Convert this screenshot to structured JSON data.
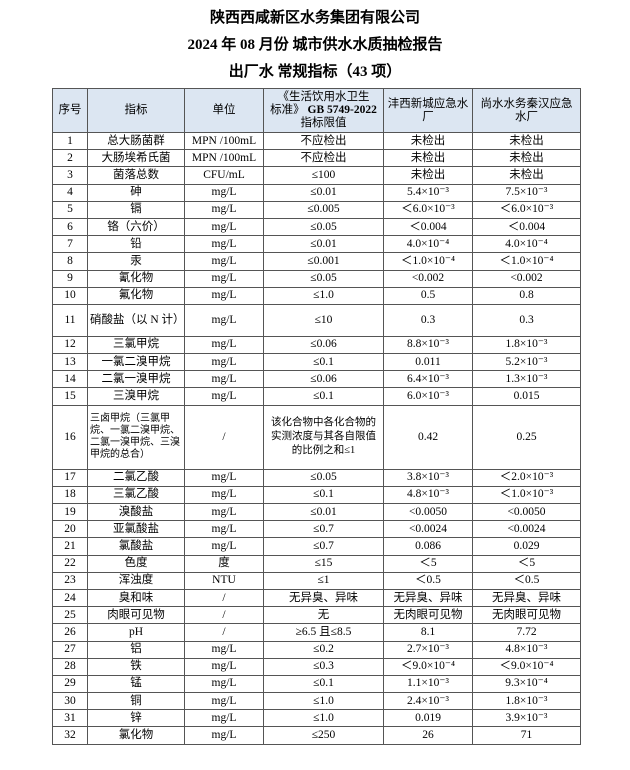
{
  "titles": {
    "company": "陕西西咸新区水务集团有限公司",
    "report": "2024 年 08 月份  城市供水水质抽检报告",
    "subtitle": "出厂水 常规指标（43 项）"
  },
  "header": {
    "no": "序号",
    "indicator": "指标",
    "unit": "单位",
    "limit_line1": "《生活饮用水卫生",
    "limit_line2a": "标准》",
    "limit_line2b": "GB 5749-2022",
    "limit_line3": "指标限值",
    "plant1": "沣西新城应急水厂",
    "plant2": "尚水水务秦汉应急水厂"
  },
  "colors": {
    "header_bg": "#dce6f2",
    "border": "#555555"
  },
  "rows": [
    {
      "no": "1",
      "name": "总大肠菌群",
      "unit": "MPN /100mL",
      "limit": "不应检出",
      "p1": "未检出",
      "p2": "未检出"
    },
    {
      "no": "2",
      "name": "大肠埃希氏菌",
      "unit": "MPN /100mL",
      "limit": "不应检出",
      "p1": "未检出",
      "p2": "未检出"
    },
    {
      "no": "3",
      "name": "菌落总数",
      "unit": "CFU/mL",
      "limit": "≤100",
      "p1": "未检出",
      "p2": "未检出"
    },
    {
      "no": "4",
      "name": "砷",
      "unit": "mg/L",
      "limit": "≤0.01",
      "p1": "5.4×10⁻³",
      "p2": "7.5×10⁻³"
    },
    {
      "no": "5",
      "name": "镉",
      "unit": "mg/L",
      "limit": "≤0.005",
      "p1": "＜6.0×10⁻³",
      "p2": "＜6.0×10⁻³"
    },
    {
      "no": "6",
      "name": "铬（六价）",
      "unit": "mg/L",
      "limit": "≤0.05",
      "p1": "＜0.004",
      "p2": "＜0.004"
    },
    {
      "no": "7",
      "name": "铅",
      "unit": "mg/L",
      "limit": "≤0.01",
      "p1": "4.0×10⁻⁴",
      "p2": "4.0×10⁻⁴"
    },
    {
      "no": "8",
      "name": "汞",
      "unit": "mg/L",
      "limit": "≤0.001",
      "p1": "＜1.0×10⁻⁴",
      "p2": "＜1.0×10⁻⁴"
    },
    {
      "no": "9",
      "name": "氰化物",
      "unit": "mg/L",
      "limit": "≤0.05",
      "p1": "<0.002",
      "p2": "<0.002"
    },
    {
      "no": "10",
      "name": "氟化物",
      "unit": "mg/L",
      "limit": "≤1.0",
      "p1": "0.5",
      "p2": "0.8"
    },
    {
      "no": "11",
      "name": "硝酸盐（以 N 计）",
      "unit": "mg/L",
      "limit": "≤10",
      "p1": "0.3",
      "p2": "0.3"
    },
    {
      "no": "12",
      "name": "三氯甲烷",
      "unit": "mg/L",
      "limit": "≤0.06",
      "p1": "8.8×10⁻³",
      "p2": "1.8×10⁻³"
    },
    {
      "no": "13",
      "name": "一氯二溴甲烷",
      "unit": "mg/L",
      "limit": "≤0.1",
      "p1": "0.011",
      "p2": "5.2×10⁻³"
    },
    {
      "no": "14",
      "name": "二氯一溴甲烷",
      "unit": "mg/L",
      "limit": "≤0.06",
      "p1": "6.4×10⁻³",
      "p2": "1.3×10⁻³"
    },
    {
      "no": "15",
      "name": "三溴甲烷",
      "unit": "mg/L",
      "limit": "≤0.1",
      "p1": "6.0×10⁻³",
      "p2": "0.015"
    },
    {
      "no": "16",
      "name": "三卤甲烷（三氯甲烷、一氯二溴甲烷、二氯一溴甲烷、三溴甲烷的总合）",
      "unit": "/",
      "limit": "该化合物中各化合物的实测浓度与其各自限值的比例之和≤1",
      "p1": "0.42",
      "p2": "0.25"
    },
    {
      "no": "17",
      "name": "二氯乙酸",
      "unit": "mg/L",
      "limit": "≤0.05",
      "p1": "3.8×10⁻³",
      "p2": "＜2.0×10⁻³"
    },
    {
      "no": "18",
      "name": "三氯乙酸",
      "unit": "mg/L",
      "limit": "≤0.1",
      "p1": "4.8×10⁻³",
      "p2": "＜1.0×10⁻³"
    },
    {
      "no": "19",
      "name": "溴酸盐",
      "unit": "mg/L",
      "limit": "≤0.01",
      "p1": "<0.0050",
      "p2": "<0.0050"
    },
    {
      "no": "20",
      "name": "亚氯酸盐",
      "unit": "mg/L",
      "limit": "≤0.7",
      "p1": "<0.0024",
      "p2": "<0.0024"
    },
    {
      "no": "21",
      "name": "氯酸盐",
      "unit": "mg/L",
      "limit": "≤0.7",
      "p1": "0.086",
      "p2": "0.029"
    },
    {
      "no": "22",
      "name": "色度",
      "unit": "度",
      "limit": "≤15",
      "p1": "＜5",
      "p2": "＜5"
    },
    {
      "no": "23",
      "name": "浑浊度",
      "unit": "NTU",
      "limit": "≤1",
      "p1": "＜0.5",
      "p2": "＜0.5"
    },
    {
      "no": "24",
      "name": "臭和味",
      "unit": "/",
      "limit": "无异臭、异味",
      "p1": "无异臭、异味",
      "p2": "无异臭、异味"
    },
    {
      "no": "25",
      "name": "肉眼可见物",
      "unit": "/",
      "limit": "无",
      "p1": "无肉眼可见物",
      "p2": "无肉眼可见物"
    },
    {
      "no": "26",
      "name": "pH",
      "unit": "/",
      "limit": "≥6.5 且≤8.5",
      "p1": "8.1",
      "p2": "7.72"
    },
    {
      "no": "27",
      "name": "铝",
      "unit": "mg/L",
      "limit": "≤0.2",
      "p1": "2.7×10⁻³",
      "p2": "4.8×10⁻³"
    },
    {
      "no": "28",
      "name": "铁",
      "unit": "mg/L",
      "limit": "≤0.3",
      "p1": "＜9.0×10⁻⁴",
      "p2": "＜9.0×10⁻⁴"
    },
    {
      "no": "29",
      "name": "锰",
      "unit": "mg/L",
      "limit": "≤0.1",
      "p1": "1.1×10⁻³",
      "p2": "9.3×10⁻⁴"
    },
    {
      "no": "30",
      "name": "铜",
      "unit": "mg/L",
      "limit": "≤1.0",
      "p1": "2.4×10⁻³",
      "p2": "1.8×10⁻³"
    },
    {
      "no": "31",
      "name": "锌",
      "unit": "mg/L",
      "limit": "≤1.0",
      "p1": "0.019",
      "p2": "3.9×10⁻³"
    },
    {
      "no": "32",
      "name": "氯化物",
      "unit": "mg/L",
      "limit": "≤250",
      "p1": "26",
      "p2": "71"
    }
  ]
}
